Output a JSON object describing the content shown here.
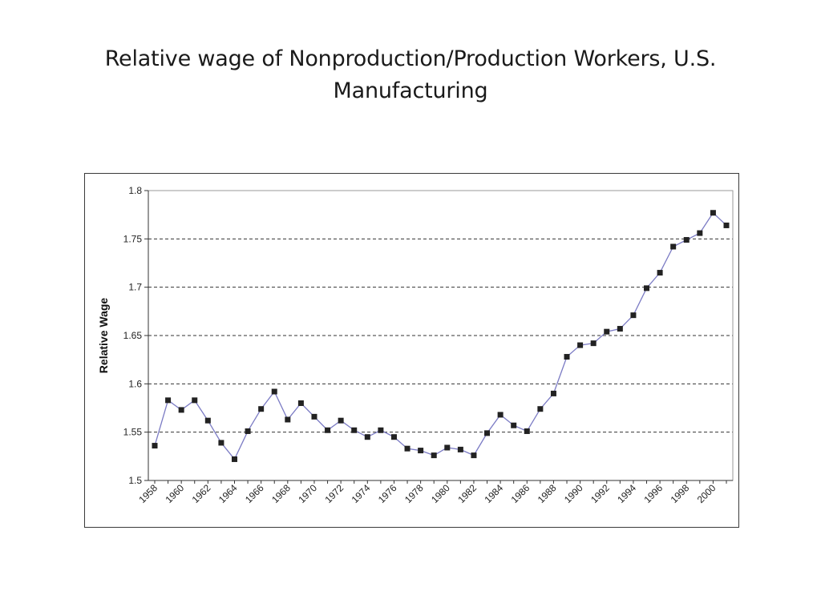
{
  "slide": {
    "title_line1": "Relative wage of Nonproduction/Production Workers, U.S.",
    "title_line2": "Manufacturing"
  },
  "chart_data": {
    "type": "line",
    "title": "Relative wage of Nonproduction/Production Workers, U.S. Manufacturing",
    "xlabel": "",
    "ylabel": "Relative Wage",
    "ylim": [
      1.5,
      1.8
    ],
    "yticks": [
      "1.5",
      "1.55",
      "1.6",
      "1.65",
      "1.7",
      "1.75",
      "1.8"
    ],
    "xticks": [
      "1958",
      "1960",
      "1962",
      "1964",
      "1966",
      "1968",
      "1970",
      "1972",
      "1974",
      "1976",
      "1978",
      "1980",
      "1982",
      "1984",
      "1986",
      "1988",
      "1990",
      "1992",
      "1994",
      "1996",
      "1998",
      "2000"
    ],
    "grid": "horizontal dashed at 1.55, 1.6, 1.65, 1.7, 1.75",
    "legend": "none",
    "line_color": "#7b7bc4",
    "marker_color": "#222222",
    "series": [
      {
        "x": [
          1958,
          1959,
          1960,
          1961,
          1962,
          1963,
          1964,
          1965,
          1966,
          1967,
          1968,
          1969,
          1970,
          1971,
          1972,
          1973,
          1974,
          1975,
          1976,
          1977,
          1978,
          1979,
          1980,
          1981,
          1982,
          1983,
          1984,
          1985,
          1986,
          1987,
          1988,
          1989,
          1990,
          1991,
          1992,
          1993,
          1994,
          1995,
          1996,
          1997,
          1998,
          1999,
          2000,
          2001
        ],
        "values": [
          1.536,
          1.583,
          1.573,
          1.583,
          1.562,
          1.539,
          1.522,
          1.551,
          1.574,
          1.592,
          1.563,
          1.58,
          1.566,
          1.552,
          1.562,
          1.552,
          1.545,
          1.552,
          1.545,
          1.533,
          1.531,
          1.526,
          1.534,
          1.532,
          1.526,
          1.549,
          1.568,
          1.557,
          1.551,
          1.574,
          1.59,
          1.628,
          1.64,
          1.642,
          1.654,
          1.657,
          1.671,
          1.699,
          1.715,
          1.742,
          1.749,
          1.756,
          1.777,
          1.764
        ]
      }
    ]
  }
}
